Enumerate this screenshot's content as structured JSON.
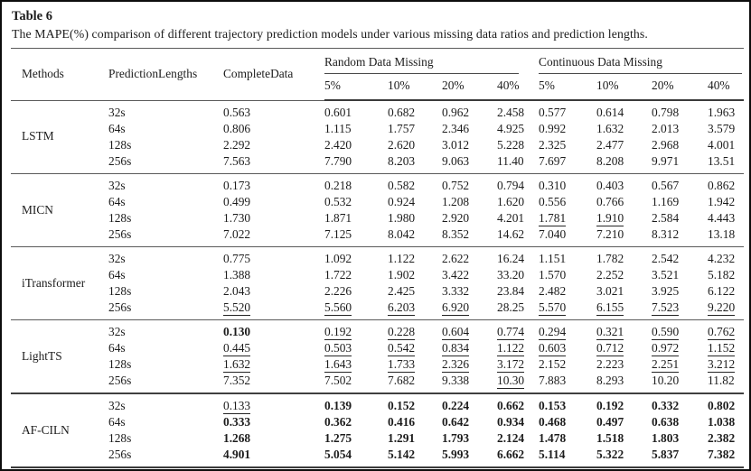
{
  "title": "Table 6",
  "caption": "The MAPE(%) comparison of different trajectory prediction models under various missing data ratios and prediction lengths.",
  "header": {
    "methods": "Methods",
    "prediction_lengths": "PredictionLengths",
    "complete_data": "CompleteData",
    "random_group": "Random Data Missing",
    "continuous_group": "Continuous Data Missing",
    "ratios": [
      "5%",
      "10%",
      "20%",
      "40%"
    ]
  },
  "groups": [
    {
      "method": "LSTM",
      "rows": [
        {
          "length": "32s",
          "values": [
            "0.563",
            "0.601",
            "0.682",
            "0.962",
            "2.458",
            "0.577",
            "0.614",
            "0.798",
            "1.963"
          ],
          "styles": [
            "",
            "",
            "",
            "",
            "",
            "",
            "",
            "",
            ""
          ]
        },
        {
          "length": "64s",
          "values": [
            "0.806",
            "1.115",
            "1.757",
            "2.346",
            "4.925",
            "0.992",
            "1.632",
            "2.013",
            "3.579"
          ],
          "styles": [
            "",
            "",
            "",
            "",
            "",
            "",
            "",
            "",
            ""
          ]
        },
        {
          "length": "128s",
          "values": [
            "2.292",
            "2.420",
            "2.620",
            "3.012",
            "5.228",
            "2.325",
            "2.477",
            "2.968",
            "4.001"
          ],
          "styles": [
            "",
            "",
            "",
            "",
            "",
            "",
            "",
            "",
            ""
          ]
        },
        {
          "length": "256s",
          "values": [
            "7.563",
            "7.790",
            "8.203",
            "9.063",
            "11.40",
            "7.697",
            "8.208",
            "9.971",
            "13.51"
          ],
          "styles": [
            "",
            "",
            "",
            "",
            "",
            "",
            "",
            "",
            ""
          ]
        }
      ]
    },
    {
      "method": "MICN",
      "rows": [
        {
          "length": "32s",
          "values": [
            "0.173",
            "0.218",
            "0.582",
            "0.752",
            "0.794",
            "0.310",
            "0.403",
            "0.567",
            "0.862"
          ],
          "styles": [
            "",
            "",
            "",
            "",
            "",
            "",
            "",
            "",
            ""
          ]
        },
        {
          "length": "64s",
          "values": [
            "0.499",
            "0.532",
            "0.924",
            "1.208",
            "1.620",
            "0.556",
            "0.766",
            "1.169",
            "1.942"
          ],
          "styles": [
            "",
            "",
            "",
            "",
            "",
            "",
            "",
            "",
            ""
          ]
        },
        {
          "length": "128s",
          "values": [
            "1.730",
            "1.871",
            "1.980",
            "2.920",
            "4.201",
            "1.781",
            "1.910",
            "2.584",
            "4.443"
          ],
          "styles": [
            "",
            "",
            "",
            "",
            "",
            "u",
            "u",
            "",
            ""
          ]
        },
        {
          "length": "256s",
          "values": [
            "7.022",
            "7.125",
            "8.042",
            "8.352",
            "14.62",
            "7.040",
            "7.210",
            "8.312",
            "13.18"
          ],
          "styles": [
            "",
            "",
            "",
            "",
            "",
            "",
            "",
            "",
            ""
          ]
        }
      ]
    },
    {
      "method": "iTransformer",
      "rows": [
        {
          "length": "32s",
          "values": [
            "0.775",
            "1.092",
            "1.122",
            "2.622",
            "16.24",
            "1.151",
            "1.782",
            "2.542",
            "4.232"
          ],
          "styles": [
            "",
            "",
            "",
            "",
            "",
            "",
            "",
            "",
            ""
          ]
        },
        {
          "length": "64s",
          "values": [
            "1.388",
            "1.722",
            "1.902",
            "3.422",
            "33.20",
            "1.570",
            "2.252",
            "3.521",
            "5.182"
          ],
          "styles": [
            "",
            "",
            "",
            "",
            "",
            "",
            "",
            "",
            ""
          ]
        },
        {
          "length": "128s",
          "values": [
            "2.043",
            "2.226",
            "2.425",
            "3.332",
            "23.84",
            "2.482",
            "3.021",
            "3.925",
            "6.122"
          ],
          "styles": [
            "",
            "",
            "",
            "",
            "",
            "",
            "",
            "",
            ""
          ]
        },
        {
          "length": "256s",
          "values": [
            "5.520",
            "5.560",
            "6.203",
            "6.920",
            "28.25",
            "5.570",
            "6.155",
            "7.523",
            "9.220"
          ],
          "styles": [
            "u",
            "u",
            "u",
            "u",
            "",
            "u",
            "u",
            "u",
            "u"
          ]
        }
      ]
    },
    {
      "method": "LightTS",
      "rows": [
        {
          "length": "32s",
          "values": [
            "0.130",
            "0.192",
            "0.228",
            "0.604",
            "0.774",
            "0.294",
            "0.321",
            "0.590",
            "0.762"
          ],
          "styles": [
            "b",
            "u",
            "u",
            "u",
            "u",
            "u",
            "u",
            "u",
            "u"
          ]
        },
        {
          "length": "64s",
          "values": [
            "0.445",
            "0.503",
            "0.542",
            "0.834",
            "1.122",
            "0.603",
            "0.712",
            "0.972",
            "1.152"
          ],
          "styles": [
            "u",
            "u",
            "u",
            "u",
            "u",
            "u",
            "u",
            "u",
            "u"
          ]
        },
        {
          "length": "128s",
          "values": [
            "1.632",
            "1.643",
            "1.733",
            "2.326",
            "3.172",
            "2.152",
            "2.223",
            "2.251",
            "3.212"
          ],
          "styles": [
            "u",
            "u",
            "u",
            "u",
            "u",
            "",
            "",
            "u",
            "u"
          ]
        },
        {
          "length": "256s",
          "values": [
            "7.352",
            "7.502",
            "7.682",
            "9.338",
            "10.30",
            "7.883",
            "8.293",
            "10.20",
            "11.82"
          ],
          "styles": [
            "",
            "",
            "",
            "",
            "u",
            "",
            "",
            "",
            ""
          ]
        }
      ]
    },
    {
      "method": "AF-CILN",
      "rows": [
        {
          "length": "32s",
          "values": [
            "0.133",
            "0.139",
            "0.152",
            "0.224",
            "0.662",
            "0.153",
            "0.192",
            "0.332",
            "0.802"
          ],
          "styles": [
            "u",
            "b",
            "b",
            "b",
            "b",
            "b",
            "b",
            "b",
            "b"
          ]
        },
        {
          "length": "64s",
          "values": [
            "0.333",
            "0.362",
            "0.416",
            "0.642",
            "0.934",
            "0.468",
            "0.497",
            "0.638",
            "1.038"
          ],
          "styles": [
            "b",
            "b",
            "b",
            "b",
            "b",
            "b",
            "b",
            "b",
            "b"
          ]
        },
        {
          "length": "128s",
          "values": [
            "1.268",
            "1.275",
            "1.291",
            "1.793",
            "2.124",
            "1.478",
            "1.518",
            "1.803",
            "2.382"
          ],
          "styles": [
            "b",
            "b",
            "b",
            "b",
            "b",
            "b",
            "b",
            "b",
            "b"
          ]
        },
        {
          "length": "256s",
          "values": [
            "4.901",
            "5.054",
            "5.142",
            "5.993",
            "6.662",
            "5.114",
            "5.322",
            "5.837",
            "7.382"
          ],
          "styles": [
            "b",
            "b",
            "b",
            "b",
            "b",
            "b",
            "b",
            "b",
            "b"
          ]
        }
      ]
    }
  ]
}
